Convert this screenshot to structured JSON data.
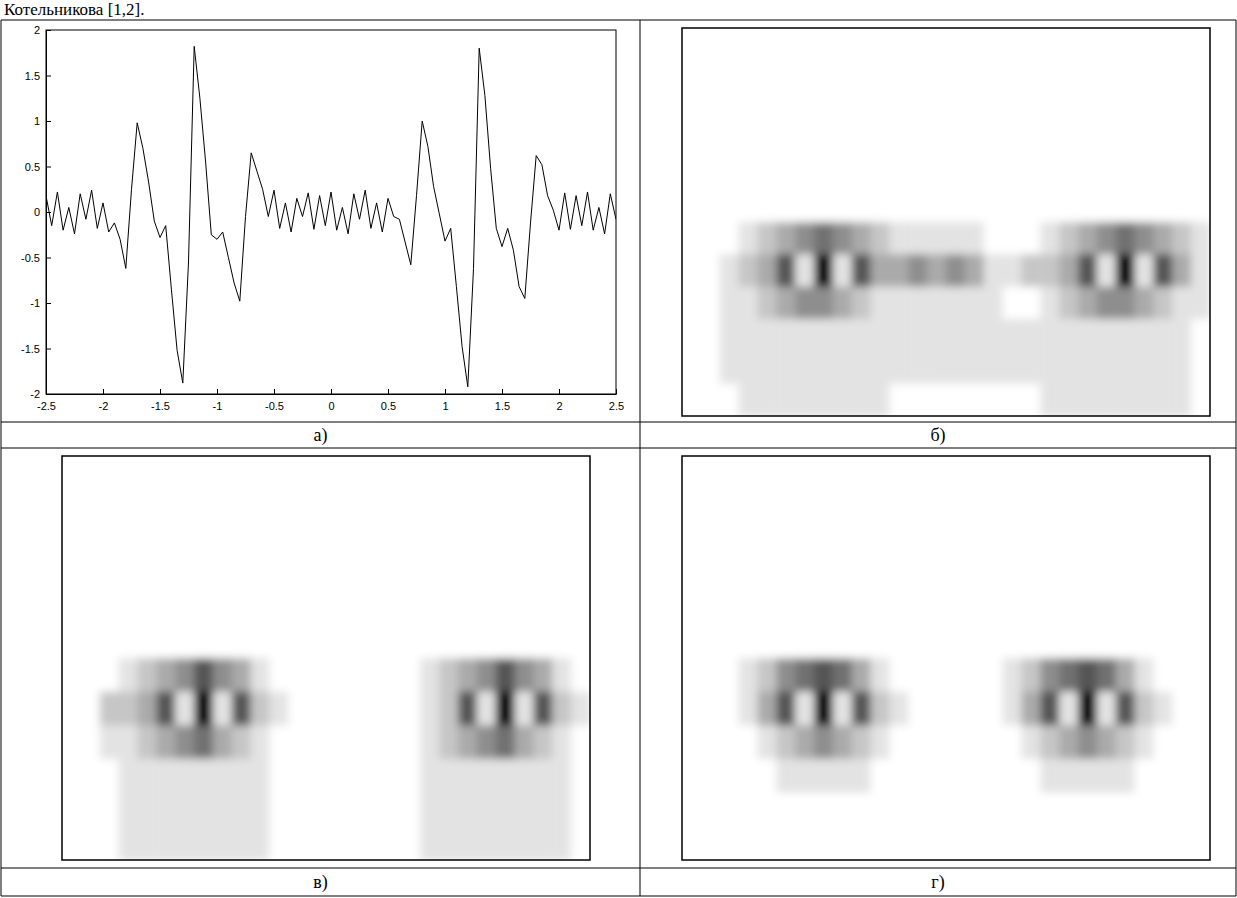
{
  "header": {
    "text": "Котельникова [1,2]."
  },
  "chart_data": [
    {
      "type": "line",
      "label": "а)",
      "x": [
        -2.5,
        -2.45,
        -2.4,
        -2.35,
        -2.3,
        -2.25,
        -2.2,
        -2.15,
        -2.1,
        -2.05,
        -2,
        -1.95,
        -1.9,
        -1.85,
        -1.8,
        -1.75,
        -1.7,
        -1.65,
        -1.6,
        -1.55,
        -1.5,
        -1.45,
        -1.4,
        -1.35,
        -1.3,
        -1.25,
        -1.2,
        -1.15,
        -1.1,
        -1.05,
        -1,
        -0.95,
        -0.9,
        -0.85,
        -0.8,
        -0.75,
        -0.7,
        -0.65,
        -0.6,
        -0.55,
        -0.5,
        -0.45,
        -0.4,
        -0.35,
        -0.3,
        -0.25,
        -0.2,
        -0.15,
        -0.1,
        -0.05,
        0,
        0.05,
        0.1,
        0.15,
        0.2,
        0.25,
        0.3,
        0.35,
        0.4,
        0.45,
        0.5,
        0.55,
        0.6,
        0.65,
        0.7,
        0.75,
        0.8,
        0.85,
        0.9,
        0.95,
        1,
        1.05,
        1.1,
        1.15,
        1.2,
        1.25,
        1.3,
        1.35,
        1.4,
        1.45,
        1.5,
        1.55,
        1.6,
        1.65,
        1.7,
        1.75,
        1.8,
        1.85,
        1.9,
        1.95,
        2,
        2.05,
        2.1,
        2.15,
        2.2,
        2.25,
        2.3,
        2.35,
        2.4,
        2.45,
        2.5
      ],
      "series": [
        {
          "color": "#000000",
          "values": [
            0.18,
            -0.15,
            0.22,
            -0.2,
            0.05,
            -0.24,
            0.2,
            -0.08,
            0.24,
            -0.18,
            0.1,
            -0.22,
            -0.12,
            -0.3,
            -0.62,
            0.25,
            0.98,
            0.7,
            0.33,
            -0.1,
            -0.28,
            -0.15,
            -0.85,
            -1.52,
            -1.88,
            -0.55,
            1.82,
            1.25,
            0.55,
            -0.25,
            -0.3,
            -0.22,
            -0.5,
            -0.78,
            -0.98,
            -0.05,
            0.65,
            0.45,
            0.25,
            -0.05,
            0.24,
            -0.18,
            0.1,
            -0.22,
            0.15,
            -0.05,
            0.21,
            -0.19,
            0.18,
            -0.15,
            0.22,
            -0.2,
            0.05,
            -0.24,
            0.2,
            -0.08,
            0.24,
            -0.18,
            0.1,
            -0.22,
            0.15,
            -0.05,
            -0.08,
            -0.33,
            -0.58,
            0.18,
            1.0,
            0.72,
            0.28,
            -0.02,
            -0.32,
            -0.18,
            -0.82,
            -1.48,
            -1.92,
            -0.62,
            1.8,
            1.28,
            0.48,
            -0.18,
            -0.38,
            -0.18,
            -0.42,
            -0.82,
            -0.95,
            -0.12,
            0.62,
            0.52,
            0.18,
            0.02,
            -0.2,
            0.21,
            -0.19,
            0.18,
            -0.15,
            0.22,
            -0.2,
            0.05,
            -0.24,
            0.2,
            -0.08
          ]
        }
      ],
      "xlim": [
        -2.5,
        2.5
      ],
      "xticks": [
        -2.5,
        -2,
        -1.5,
        -1,
        -0.5,
        0,
        0.5,
        1,
        1.5,
        2,
        2.5
      ],
      "ylim": [
        -2,
        2
      ],
      "yticks": [
        -2,
        -1.5,
        -1,
        -0.5,
        0,
        0.5,
        1,
        1.5,
        2
      ],
      "grid": false
    },
    {
      "type": "heatmap",
      "label": "б)",
      "color": "#000000",
      "tick_labels": false,
      "zlim": [
        0,
        9
      ],
      "cells": [
        [
          0,
          0,
          0,
          0,
          0,
          0,
          0,
          0,
          0,
          0,
          0,
          0,
          0,
          0,
          0,
          0,
          0,
          0,
          0,
          0,
          0,
          0,
          0,
          0,
          0,
          0,
          0,
          0
        ],
        [
          0,
          0,
          0,
          0,
          0,
          0,
          0,
          0,
          0,
          0,
          0,
          0,
          0,
          0,
          0,
          0,
          0,
          0,
          0,
          0,
          0,
          0,
          0,
          0,
          0,
          0,
          0,
          0
        ],
        [
          0,
          0,
          0,
          0,
          0,
          0,
          0,
          0,
          0,
          0,
          0,
          0,
          0,
          0,
          0,
          0,
          0,
          0,
          0,
          0,
          0,
          0,
          0,
          0,
          0,
          0,
          0,
          0
        ],
        [
          0,
          0,
          0,
          0,
          0,
          0,
          0,
          0,
          0,
          0,
          0,
          0,
          0,
          0,
          0,
          0,
          0,
          0,
          0,
          0,
          0,
          0,
          0,
          0,
          0,
          0,
          0,
          0
        ],
        [
          0,
          0,
          0,
          0,
          0,
          0,
          0,
          0,
          0,
          0,
          0,
          0,
          0,
          0,
          0,
          0,
          0,
          0,
          0,
          0,
          0,
          0,
          0,
          0,
          0,
          0,
          0,
          0
        ],
        [
          0,
          0,
          0,
          0,
          0,
          0,
          0,
          0,
          0,
          0,
          0,
          0,
          0,
          0,
          0,
          0,
          0,
          0,
          0,
          0,
          0,
          0,
          0,
          0,
          0,
          0,
          0,
          0
        ],
        [
          0,
          0,
          0,
          1,
          2,
          3,
          4,
          5,
          4,
          3,
          2,
          1,
          1,
          1,
          1,
          1,
          0,
          0,
          0,
          1,
          2,
          3,
          4,
          5,
          4,
          3,
          2,
          1
        ],
        [
          0,
          0,
          1,
          2,
          3,
          6,
          1,
          9,
          1,
          6,
          3,
          3,
          4,
          3,
          4,
          3,
          1,
          1,
          2,
          2,
          3,
          6,
          1,
          9,
          1,
          6,
          3,
          1
        ],
        [
          0,
          0,
          1,
          1,
          2,
          3,
          4,
          4,
          3,
          2,
          1,
          1,
          1,
          1,
          1,
          1,
          1,
          0,
          0,
          1,
          2,
          3,
          4,
          4,
          3,
          2,
          1,
          1
        ],
        [
          0,
          0,
          1,
          1,
          1,
          1,
          1,
          1,
          1,
          1,
          1,
          1,
          1,
          1,
          1,
          1,
          1,
          1,
          1,
          1,
          1,
          1,
          1,
          1,
          1,
          1,
          1,
          0
        ],
        [
          0,
          0,
          1,
          1,
          1,
          1,
          1,
          1,
          1,
          1,
          1,
          1,
          1,
          1,
          1,
          1,
          1,
          1,
          1,
          1,
          1,
          1,
          1,
          1,
          1,
          1,
          1,
          0
        ],
        [
          0,
          0,
          0,
          1,
          1,
          1,
          1,
          1,
          1,
          1,
          1,
          0,
          0,
          0,
          0,
          0,
          0,
          0,
          0,
          1,
          1,
          1,
          1,
          1,
          1,
          1,
          1,
          0
        ]
      ]
    },
    {
      "type": "heatmap",
      "label": "в)",
      "color": "#000000",
      "tick_labels": false,
      "zlim": [
        0,
        9
      ],
      "cells": [
        [
          0,
          0,
          0,
          0,
          0,
          0,
          0,
          0,
          0,
          0,
          0,
          0,
          0,
          0,
          0,
          0,
          0,
          0,
          0,
          0,
          0,
          0,
          0,
          0,
          0,
          0,
          0,
          0
        ],
        [
          0,
          0,
          0,
          0,
          0,
          0,
          0,
          0,
          0,
          0,
          0,
          0,
          0,
          0,
          0,
          0,
          0,
          0,
          0,
          0,
          0,
          0,
          0,
          0,
          0,
          0,
          0,
          0
        ],
        [
          0,
          0,
          0,
          0,
          0,
          0,
          0,
          0,
          0,
          0,
          0,
          0,
          0,
          0,
          0,
          0,
          0,
          0,
          0,
          0,
          0,
          0,
          0,
          0,
          0,
          0,
          0,
          0
        ],
        [
          0,
          0,
          0,
          0,
          0,
          0,
          0,
          0,
          0,
          0,
          0,
          0,
          0,
          0,
          0,
          0,
          0,
          0,
          0,
          0,
          0,
          0,
          0,
          0,
          0,
          0,
          0,
          0
        ],
        [
          0,
          0,
          0,
          0,
          0,
          0,
          0,
          0,
          0,
          0,
          0,
          0,
          0,
          0,
          0,
          0,
          0,
          0,
          0,
          0,
          0,
          0,
          0,
          0,
          0,
          0,
          0,
          0
        ],
        [
          0,
          0,
          0,
          0,
          0,
          0,
          0,
          0,
          0,
          0,
          0,
          0,
          0,
          0,
          0,
          0,
          0,
          0,
          0,
          0,
          0,
          0,
          0,
          0,
          0,
          0,
          0,
          0
        ],
        [
          0,
          0,
          0,
          1,
          2,
          3,
          4,
          6,
          4,
          3,
          1,
          0,
          0,
          0,
          0,
          0,
          0,
          0,
          0,
          1,
          2,
          3,
          4,
          6,
          4,
          3,
          1,
          0
        ],
        [
          0,
          0,
          2,
          2,
          3,
          6,
          1,
          9,
          1,
          6,
          2,
          1,
          0,
          0,
          0,
          0,
          0,
          0,
          0,
          1,
          2,
          6,
          1,
          9,
          1,
          6,
          2,
          1
        ],
        [
          0,
          0,
          1,
          1,
          2,
          3,
          4,
          5,
          3,
          2,
          1,
          0,
          0,
          0,
          0,
          0,
          0,
          0,
          0,
          1,
          2,
          3,
          4,
          5,
          3,
          2,
          1,
          0
        ],
        [
          0,
          0,
          0,
          1,
          1,
          1,
          1,
          1,
          1,
          1,
          1,
          0,
          0,
          0,
          0,
          0,
          0,
          0,
          0,
          1,
          1,
          1,
          1,
          1,
          1,
          1,
          1,
          0
        ],
        [
          0,
          0,
          0,
          1,
          1,
          1,
          1,
          1,
          1,
          1,
          1,
          0,
          0,
          0,
          0,
          0,
          0,
          0,
          0,
          1,
          1,
          1,
          1,
          1,
          1,
          1,
          1,
          0
        ],
        [
          0,
          0,
          0,
          1,
          1,
          1,
          1,
          1,
          1,
          1,
          1,
          0,
          0,
          0,
          0,
          0,
          0,
          0,
          0,
          1,
          1,
          1,
          1,
          1,
          1,
          1,
          1,
          0
        ]
      ]
    },
    {
      "type": "heatmap",
      "label": "г)",
      "color": "#000000",
      "tick_labels": false,
      "zlim": [
        0,
        9
      ],
      "cells": [
        [
          0,
          0,
          0,
          0,
          0,
          0,
          0,
          0,
          0,
          0,
          0,
          0,
          0,
          0,
          0,
          0,
          0,
          0,
          0,
          0,
          0,
          0,
          0,
          0,
          0,
          0,
          0,
          0
        ],
        [
          0,
          0,
          0,
          0,
          0,
          0,
          0,
          0,
          0,
          0,
          0,
          0,
          0,
          0,
          0,
          0,
          0,
          0,
          0,
          0,
          0,
          0,
          0,
          0,
          0,
          0,
          0,
          0
        ],
        [
          0,
          0,
          0,
          0,
          0,
          0,
          0,
          0,
          0,
          0,
          0,
          0,
          0,
          0,
          0,
          0,
          0,
          0,
          0,
          0,
          0,
          0,
          0,
          0,
          0,
          0,
          0,
          0
        ],
        [
          0,
          0,
          0,
          0,
          0,
          0,
          0,
          0,
          0,
          0,
          0,
          0,
          0,
          0,
          0,
          0,
          0,
          0,
          0,
          0,
          0,
          0,
          0,
          0,
          0,
          0,
          0,
          0
        ],
        [
          0,
          0,
          0,
          0,
          0,
          0,
          0,
          0,
          0,
          0,
          0,
          0,
          0,
          0,
          0,
          0,
          0,
          0,
          0,
          0,
          0,
          0,
          0,
          0,
          0,
          0,
          0,
          0
        ],
        [
          0,
          0,
          0,
          0,
          0,
          0,
          0,
          0,
          0,
          0,
          0,
          0,
          0,
          0,
          0,
          0,
          0,
          0,
          0,
          0,
          0,
          0,
          0,
          0,
          0,
          0,
          0,
          0
        ],
        [
          0,
          0,
          0,
          1,
          2,
          4,
          5,
          6,
          5,
          3,
          1,
          0,
          0,
          0,
          0,
          0,
          0,
          1,
          2,
          4,
          5,
          6,
          5,
          3,
          1,
          0,
          0,
          0
        ],
        [
          0,
          0,
          0,
          1,
          3,
          6,
          1,
          9,
          1,
          6,
          2,
          1,
          0,
          0,
          0,
          0,
          0,
          1,
          3,
          6,
          1,
          9,
          1,
          6,
          2,
          1,
          0,
          0
        ],
        [
          0,
          0,
          0,
          0,
          1,
          2,
          3,
          4,
          3,
          2,
          1,
          0,
          0,
          0,
          0,
          0,
          0,
          0,
          1,
          2,
          3,
          4,
          3,
          2,
          1,
          0,
          0,
          0
        ],
        [
          0,
          0,
          0,
          0,
          0,
          1,
          1,
          1,
          1,
          1,
          0,
          0,
          0,
          0,
          0,
          0,
          0,
          0,
          0,
          1,
          1,
          1,
          1,
          1,
          0,
          0,
          0,
          0
        ],
        [
          0,
          0,
          0,
          0,
          0,
          0,
          0,
          0,
          0,
          0,
          0,
          0,
          0,
          0,
          0,
          0,
          0,
          0,
          0,
          0,
          0,
          0,
          0,
          0,
          0,
          0,
          0,
          0
        ],
        [
          0,
          0,
          0,
          0,
          0,
          0,
          0,
          0,
          0,
          0,
          0,
          0,
          0,
          0,
          0,
          0,
          0,
          0,
          0,
          0,
          0,
          0,
          0,
          0,
          0,
          0,
          0,
          0
        ]
      ]
    }
  ]
}
